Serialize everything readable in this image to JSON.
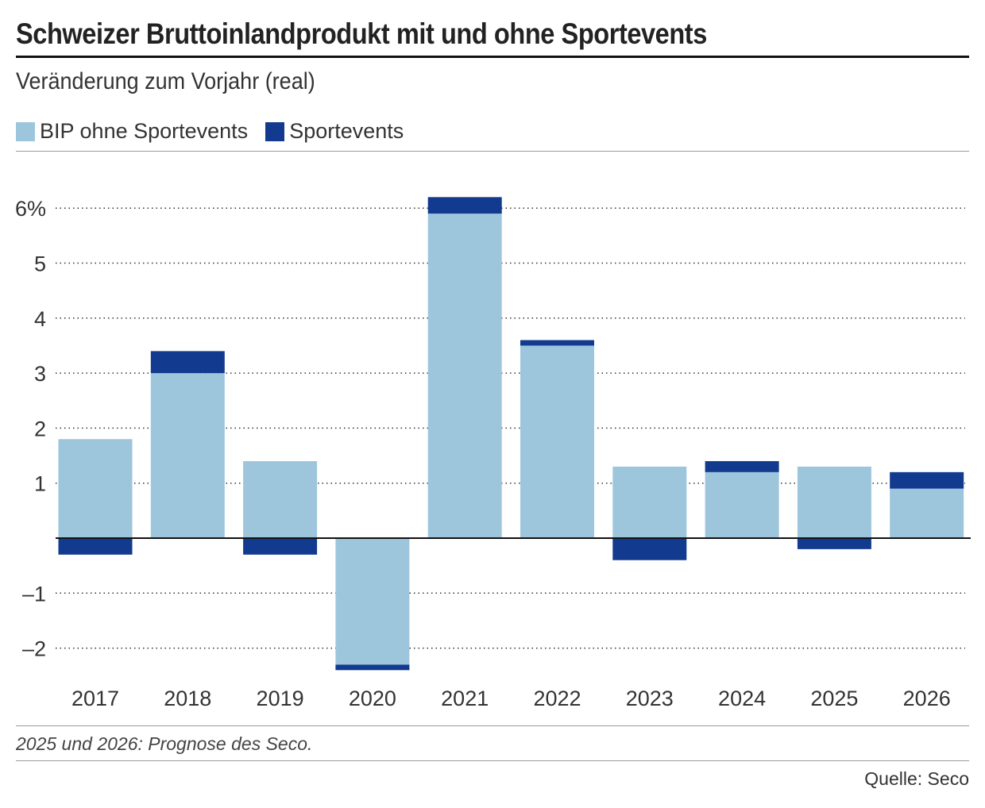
{
  "title": "Schweizer Bruttoinlandprodukt mit und ohne Sportevents",
  "subtitle": "Veränderung zum Vorjahr (real)",
  "note": "2025 und 2026: Prognose des Seco.",
  "source": "Quelle: Seco",
  "colors": {
    "base": "#9dc6dd",
    "sport": "#123a8e"
  },
  "chart_data": {
    "type": "bar",
    "stacked": true,
    "categories": [
      "2017",
      "2018",
      "2019",
      "2020",
      "2021",
      "2022",
      "2023",
      "2024",
      "2025",
      "2026"
    ],
    "series": [
      {
        "name": "BIP ohne Sportevents",
        "values": [
          1.8,
          3.0,
          1.4,
          -2.3,
          5.9,
          3.5,
          1.3,
          1.2,
          1.3,
          0.9
        ]
      },
      {
        "name": "Sportevents",
        "values": [
          -0.3,
          0.4,
          -0.3,
          -0.1,
          0.3,
          0.1,
          -0.4,
          0.2,
          -0.2,
          0.3
        ]
      }
    ],
    "yticks": [
      -2,
      -1,
      1,
      2,
      3,
      4,
      5,
      6
    ],
    "ytick_labels": [
      "–2",
      "–1",
      "1",
      "2",
      "3",
      "4",
      "5",
      "6%"
    ],
    "ylim": [
      -2.5,
      6.3
    ],
    "grid": true,
    "legend": "top-left"
  }
}
